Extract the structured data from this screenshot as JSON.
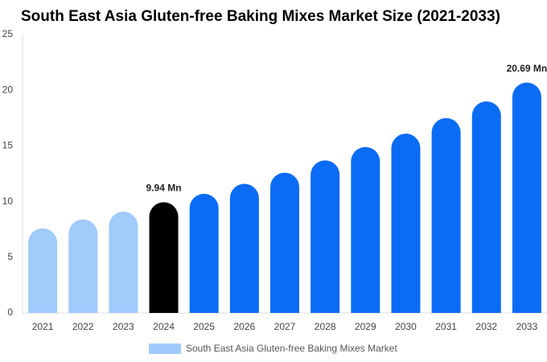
{
  "chart_data": {
    "type": "bar",
    "title": "South East Asia Gluten-free Baking Mixes Market Size (2021-2033)",
    "categories": [
      "2021",
      "2022",
      "2023",
      "2024",
      "2025",
      "2026",
      "2027",
      "2028",
      "2029",
      "2030",
      "2031",
      "2032",
      "2033"
    ],
    "series": [
      {
        "name": "South East Asia Gluten-free Baking Mixes Market",
        "color": "#a0cbfb",
        "values": [
          7.6,
          8.4,
          9.1,
          9.94,
          10.7,
          11.6,
          12.6,
          13.7,
          14.9,
          16.1,
          17.5,
          19.0,
          20.69
        ],
        "colors": [
          "#a0cbfb",
          "#a0cbfb",
          "#a0cbfb",
          "#000000",
          "#0a6cf5",
          "#0a6cf5",
          "#0a6cf5",
          "#0a6cf5",
          "#0a6cf5",
          "#0a6cf5",
          "#0a6cf5",
          "#0a6cf5",
          "#0a6cf5"
        ],
        "value_labels": [
          null,
          null,
          null,
          "9.94 Mn",
          null,
          null,
          null,
          null,
          null,
          null,
          null,
          null,
          "20.69 Mn"
        ]
      }
    ],
    "ylim": [
      0,
      25
    ],
    "yticks": [
      0,
      5,
      10,
      15,
      20,
      25
    ],
    "grid": false
  }
}
